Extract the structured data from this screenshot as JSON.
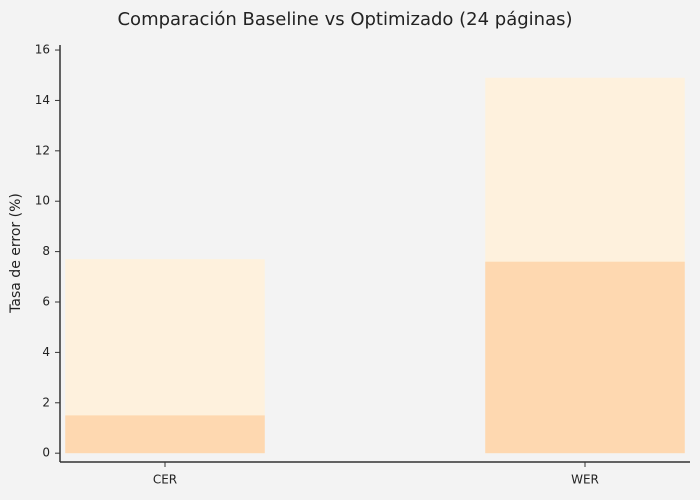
{
  "chart_data": {
    "type": "bar",
    "title": "Comparación Baseline vs Optimizado (24 páginas)",
    "y_label": "Tasa de error (%)",
    "categories": [
      "CER",
      "WER"
    ],
    "series": [
      {
        "color": "#fef1dd",
        "values": [
          7.7,
          14.9
        ]
      },
      {
        "color": "#fed8b0",
        "values": [
          1.5,
          7.6
        ]
      }
    ],
    "ylim": [
      -0.35,
      16.2
    ],
    "yticks": [
      0,
      2,
      4,
      6,
      8,
      10,
      12,
      14,
      16
    ]
  }
}
